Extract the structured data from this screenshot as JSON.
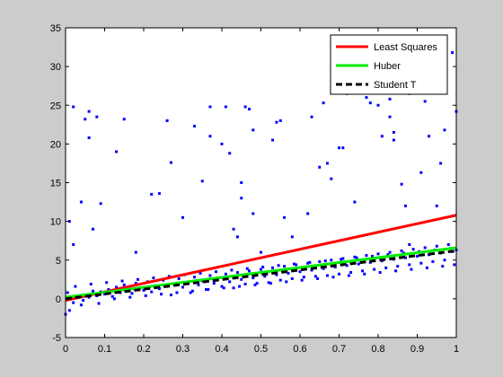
{
  "chart_data": {
    "type": "scatter",
    "title": "",
    "xlabel": "",
    "ylabel": "",
    "xlim": [
      0,
      1
    ],
    "ylim": [
      -5,
      35
    ],
    "grid": false,
    "legend_position": "top-right",
    "x_ticks": [
      0,
      0.1,
      0.2,
      0.3,
      0.4,
      0.5,
      0.6,
      0.7,
      0.8,
      0.9,
      1
    ],
    "x_tick_labels": [
      "0",
      "0.1",
      "0.2",
      "0.3",
      "0.4",
      "0.5",
      "0.6",
      "0.7",
      "0.8",
      "0.9",
      "1"
    ],
    "y_ticks": [
      -5,
      0,
      5,
      10,
      15,
      20,
      25,
      30,
      35
    ],
    "y_tick_labels": [
      "-5",
      "0",
      "5",
      "10",
      "15",
      "20",
      "25",
      "30",
      "35"
    ],
    "points": {
      "color": "#0000ff",
      "marker": "dot",
      "data": [
        [
          0.0,
          -2.0
        ],
        [
          0.01,
          -1.5
        ],
        [
          0.02,
          -0.5
        ],
        [
          0.03,
          0.3
        ],
        [
          0.04,
          -0.8
        ],
        [
          0.05,
          0.5
        ],
        [
          0.06,
          0.2
        ],
        [
          0.07,
          1.0
        ],
        [
          0.08,
          0.4
        ],
        [
          0.09,
          0.9
        ],
        [
          0.1,
          0.6
        ],
        [
          0.11,
          1.2
        ],
        [
          0.12,
          0.3
        ],
        [
          0.13,
          1.5
        ],
        [
          0.14,
          0.8
        ],
        [
          0.15,
          1.8
        ],
        [
          0.16,
          1.0
        ],
        [
          0.17,
          0.7
        ],
        [
          0.18,
          2.0
        ],
        [
          0.19,
          1.4
        ],
        [
          0.2,
          1.1
        ],
        [
          0.21,
          2.2
        ],
        [
          0.22,
          0.9
        ],
        [
          0.23,
          1.7
        ],
        [
          0.24,
          1.3
        ],
        [
          0.25,
          2.4
        ],
        [
          0.26,
          1.6
        ],
        [
          0.27,
          0.5
        ],
        [
          0.28,
          1.9
        ],
        [
          0.29,
          2.6
        ],
        [
          0.3,
          1.5
        ],
        [
          0.31,
          2.1
        ],
        [
          0.32,
          0.8
        ],
        [
          0.33,
          2.8
        ],
        [
          0.34,
          1.8
        ],
        [
          0.35,
          2.3
        ],
        [
          0.36,
          1.2
        ],
        [
          0.37,
          3.0
        ],
        [
          0.38,
          2.0
        ],
        [
          0.39,
          2.7
        ],
        [
          0.4,
          1.6
        ],
        [
          0.41,
          3.2
        ],
        [
          0.42,
          2.2
        ],
        [
          0.43,
          1.4
        ],
        [
          0.44,
          3.4
        ],
        [
          0.45,
          2.5
        ],
        [
          0.46,
          1.9
        ],
        [
          0.47,
          3.6
        ],
        [
          0.48,
          2.7
        ],
        [
          0.49,
          2.0
        ],
        [
          0.5,
          3.8
        ],
        [
          0.51,
          2.9
        ],
        [
          0.52,
          2.1
        ],
        [
          0.53,
          4.0
        ],
        [
          0.54,
          3.1
        ],
        [
          0.55,
          2.4
        ],
        [
          0.56,
          4.2
        ],
        [
          0.57,
          3.3
        ],
        [
          0.58,
          2.6
        ],
        [
          0.59,
          4.4
        ],
        [
          0.6,
          3.5
        ],
        [
          0.61,
          2.8
        ],
        [
          0.62,
          4.6
        ],
        [
          0.63,
          3.7
        ],
        [
          0.64,
          2.9
        ],
        [
          0.65,
          4.8
        ],
        [
          0.66,
          3.9
        ],
        [
          0.67,
          3.0
        ],
        [
          0.68,
          5.0
        ],
        [
          0.69,
          4.1
        ],
        [
          0.7,
          3.2
        ],
        [
          0.71,
          5.2
        ],
        [
          0.72,
          4.3
        ],
        [
          0.73,
          3.4
        ],
        [
          0.74,
          5.4
        ],
        [
          0.75,
          4.5
        ],
        [
          0.76,
          3.6
        ],
        [
          0.77,
          5.6
        ],
        [
          0.78,
          4.7
        ],
        [
          0.79,
          3.8
        ],
        [
          0.8,
          5.8
        ],
        [
          0.81,
          4.9
        ],
        [
          0.82,
          4.0
        ],
        [
          0.83,
          6.0
        ],
        [
          0.84,
          5.1
        ],
        [
          0.85,
          4.2
        ],
        [
          0.86,
          6.2
        ],
        [
          0.87,
          5.3
        ],
        [
          0.88,
          4.4
        ],
        [
          0.89,
          6.4
        ],
        [
          0.9,
          5.5
        ],
        [
          0.91,
          4.6
        ],
        [
          0.92,
          6.6
        ],
        [
          0.93,
          5.7
        ],
        [
          0.94,
          4.8
        ],
        [
          0.95,
          6.8
        ],
        [
          0.96,
          5.9
        ],
        [
          0.97,
          5.0
        ],
        [
          0.98,
          7.0
        ],
        [
          0.99,
          6.1
        ],
        [
          1.0,
          6.3
        ],
        [
          0.005,
          0.8
        ],
        [
          0.025,
          1.6
        ],
        [
          0.045,
          -0.2
        ],
        [
          0.065,
          1.9
        ],
        [
          0.085,
          -0.6
        ],
        [
          0.105,
          2.1
        ],
        [
          0.125,
          0.0
        ],
        [
          0.145,
          2.3
        ],
        [
          0.165,
          0.2
        ],
        [
          0.185,
          2.5
        ],
        [
          0.205,
          0.4
        ],
        [
          0.225,
          2.7
        ],
        [
          0.245,
          0.6
        ],
        [
          0.265,
          2.9
        ],
        [
          0.285,
          0.8
        ],
        [
          0.305,
          3.1
        ],
        [
          0.325,
          1.0
        ],
        [
          0.345,
          3.3
        ],
        [
          0.365,
          1.2
        ],
        [
          0.385,
          3.5
        ],
        [
          0.405,
          1.4
        ],
        [
          0.425,
          3.7
        ],
        [
          0.445,
          1.6
        ],
        [
          0.465,
          3.9
        ],
        [
          0.485,
          1.8
        ],
        [
          0.505,
          4.1
        ],
        [
          0.525,
          2.0
        ],
        [
          0.545,
          4.3
        ],
        [
          0.565,
          2.2
        ],
        [
          0.585,
          4.5
        ],
        [
          0.605,
          2.4
        ],
        [
          0.625,
          4.7
        ],
        [
          0.645,
          2.6
        ],
        [
          0.665,
          4.9
        ],
        [
          0.685,
          2.8
        ],
        [
          0.705,
          5.1
        ],
        [
          0.725,
          3.0
        ],
        [
          0.745,
          5.3
        ],
        [
          0.765,
          3.2
        ],
        [
          0.785,
          5.5
        ],
        [
          0.805,
          3.4
        ],
        [
          0.825,
          5.7
        ],
        [
          0.845,
          3.6
        ],
        [
          0.865,
          5.9
        ],
        [
          0.885,
          3.8
        ],
        [
          0.905,
          6.1
        ],
        [
          0.925,
          4.0
        ],
        [
          0.945,
          6.3
        ],
        [
          0.965,
          4.2
        ],
        [
          0.985,
          6.5
        ],
        [
          0.995,
          4.4
        ],
        [
          0.01,
          10.0
        ],
        [
          0.02,
          7.0
        ],
        [
          0.02,
          24.8
        ],
        [
          0.04,
          12.5
        ],
        [
          0.05,
          23.2
        ],
        [
          0.06,
          20.8
        ],
        [
          0.06,
          24.2
        ],
        [
          0.07,
          9.0
        ],
        [
          0.08,
          23.5
        ],
        [
          0.09,
          12.3
        ],
        [
          0.13,
          19.0
        ],
        [
          0.15,
          23.2
        ],
        [
          0.18,
          6.0
        ],
        [
          0.22,
          13.5
        ],
        [
          0.24,
          13.6
        ],
        [
          0.26,
          23.0
        ],
        [
          0.27,
          17.6
        ],
        [
          0.3,
          10.5
        ],
        [
          0.33,
          22.3
        ],
        [
          0.35,
          15.2
        ],
        [
          0.37,
          24.8
        ],
        [
          0.37,
          21.0
        ],
        [
          0.4,
          20.0
        ],
        [
          0.41,
          24.8
        ],
        [
          0.42,
          18.8
        ],
        [
          0.43,
          9.0
        ],
        [
          0.44,
          8.0
        ],
        [
          0.45,
          15.0
        ],
        [
          0.45,
          13.0
        ],
        [
          0.46,
          24.8
        ],
        [
          0.47,
          24.5
        ],
        [
          0.48,
          21.8
        ],
        [
          0.48,
          11.0
        ],
        [
          0.5,
          6.0
        ],
        [
          0.53,
          20.5
        ],
        [
          0.54,
          22.8
        ],
        [
          0.55,
          23.0
        ],
        [
          0.56,
          10.5
        ],
        [
          0.58,
          8.0
        ],
        [
          0.62,
          11.0
        ],
        [
          0.63,
          23.5
        ],
        [
          0.65,
          17.0
        ],
        [
          0.66,
          25.3
        ],
        [
          0.67,
          17.5
        ],
        [
          0.68,
          15.5
        ],
        [
          0.7,
          19.5
        ],
        [
          0.71,
          19.5
        ],
        [
          0.72,
          26.5
        ],
        [
          0.74,
          12.5
        ],
        [
          0.77,
          26.0
        ],
        [
          0.78,
          25.3
        ],
        [
          0.8,
          25.0
        ],
        [
          0.81,
          21.0
        ],
        [
          0.83,
          23.5
        ],
        [
          0.83,
          25.8
        ],
        [
          0.84,
          21.5
        ],
        [
          0.84,
          20.5
        ],
        [
          0.86,
          14.8
        ],
        [
          0.87,
          12.0
        ],
        [
          0.88,
          7.0
        ],
        [
          0.88,
          26.5
        ],
        [
          0.91,
          16.3
        ],
        [
          0.92,
          25.5
        ],
        [
          0.93,
          21.0
        ],
        [
          0.95,
          12.0
        ],
        [
          0.96,
          17.5
        ],
        [
          0.97,
          21.8
        ],
        [
          0.99,
          31.8
        ],
        [
          1.0,
          24.2
        ]
      ]
    },
    "series": [
      {
        "name": "Least Squares",
        "color": "#ff0000",
        "dash": "solid",
        "x": [
          0,
          1
        ],
        "y": [
          -0.2,
          10.8
        ]
      },
      {
        "name": "Huber",
        "color": "#00ee00",
        "dash": "solid",
        "x": [
          0,
          1
        ],
        "y": [
          0.2,
          6.6
        ]
      },
      {
        "name": "Student T",
        "color": "#000000",
        "dash": "dashed",
        "x": [
          0,
          1
        ],
        "y": [
          0.0,
          6.2
        ]
      }
    ]
  }
}
